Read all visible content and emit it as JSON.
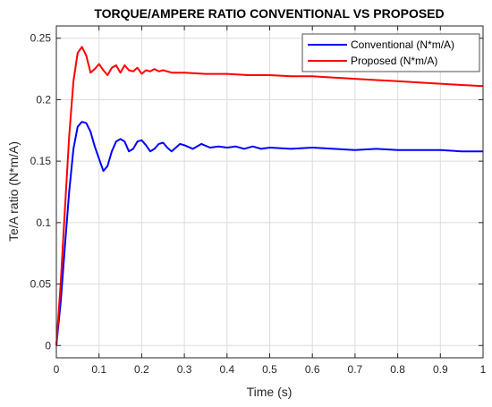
{
  "chart_data": {
    "type": "line",
    "title": "TORQUE/AMPERE RATIO CONVENTIONAL VS PROPOSED",
    "xlabel": "Time (s)",
    "ylabel": "Te/A ratio (N*m/A)",
    "xlim": [
      0,
      1
    ],
    "ylim": [
      -0.01,
      0.26
    ],
    "x_ticks": [
      0,
      0.1,
      0.2,
      0.3,
      0.4,
      0.5,
      0.6,
      0.7,
      0.8,
      0.9,
      1
    ],
    "x_tick_labels": [
      "0",
      "0.1",
      "0.2",
      "0.3",
      "0.4",
      "0.5",
      "0.6",
      "0.7",
      "0.8",
      "0.9",
      "1"
    ],
    "y_ticks": [
      0,
      0.05,
      0.1,
      0.15,
      0.2,
      0.25
    ],
    "y_tick_labels": [
      "0",
      "0.05",
      "0.1",
      "0.15",
      "0.2",
      "0.25"
    ],
    "grid": true,
    "legend_position": "top-right",
    "series": [
      {
        "name": "Conventional (N*m/A)",
        "color": "#0000ff",
        "x": [
          0,
          0.01,
          0.02,
          0.03,
          0.04,
          0.05,
          0.06,
          0.07,
          0.08,
          0.09,
          0.1,
          0.11,
          0.12,
          0.13,
          0.14,
          0.15,
          0.16,
          0.17,
          0.18,
          0.19,
          0.2,
          0.21,
          0.22,
          0.23,
          0.24,
          0.25,
          0.26,
          0.27,
          0.28,
          0.29,
          0.3,
          0.32,
          0.34,
          0.36,
          0.38,
          0.4,
          0.42,
          0.44,
          0.46,
          0.48,
          0.5,
          0.55,
          0.6,
          0.65,
          0.7,
          0.75,
          0.8,
          0.85,
          0.9,
          0.95,
          1.0
        ],
        "y": [
          0,
          0.035,
          0.08,
          0.125,
          0.16,
          0.178,
          0.182,
          0.181,
          0.174,
          0.162,
          0.152,
          0.142,
          0.146,
          0.158,
          0.166,
          0.168,
          0.166,
          0.158,
          0.16,
          0.166,
          0.167,
          0.163,
          0.158,
          0.16,
          0.164,
          0.165,
          0.161,
          0.158,
          0.161,
          0.164,
          0.163,
          0.16,
          0.164,
          0.161,
          0.162,
          0.161,
          0.162,
          0.16,
          0.162,
          0.16,
          0.161,
          0.16,
          0.161,
          0.16,
          0.159,
          0.16,
          0.159,
          0.159,
          0.159,
          0.158,
          0.158
        ]
      },
      {
        "name": "Proposed (N*m/A)",
        "color": "#ff0000",
        "x": [
          0,
          0.01,
          0.02,
          0.03,
          0.04,
          0.05,
          0.06,
          0.07,
          0.08,
          0.09,
          0.1,
          0.11,
          0.12,
          0.13,
          0.14,
          0.15,
          0.16,
          0.17,
          0.18,
          0.19,
          0.2,
          0.21,
          0.22,
          0.23,
          0.24,
          0.25,
          0.27,
          0.3,
          0.35,
          0.4,
          0.45,
          0.5,
          0.55,
          0.6,
          0.65,
          0.7,
          0.75,
          0.8,
          0.85,
          0.9,
          0.95,
          1.0
        ],
        "y": [
          0,
          0.05,
          0.11,
          0.17,
          0.215,
          0.238,
          0.243,
          0.236,
          0.222,
          0.225,
          0.229,
          0.224,
          0.22,
          0.226,
          0.228,
          0.222,
          0.228,
          0.224,
          0.223,
          0.226,
          0.221,
          0.224,
          0.223,
          0.225,
          0.223,
          0.224,
          0.222,
          0.222,
          0.221,
          0.221,
          0.22,
          0.22,
          0.219,
          0.219,
          0.218,
          0.217,
          0.216,
          0.215,
          0.214,
          0.213,
          0.212,
          0.211
        ]
      }
    ]
  }
}
